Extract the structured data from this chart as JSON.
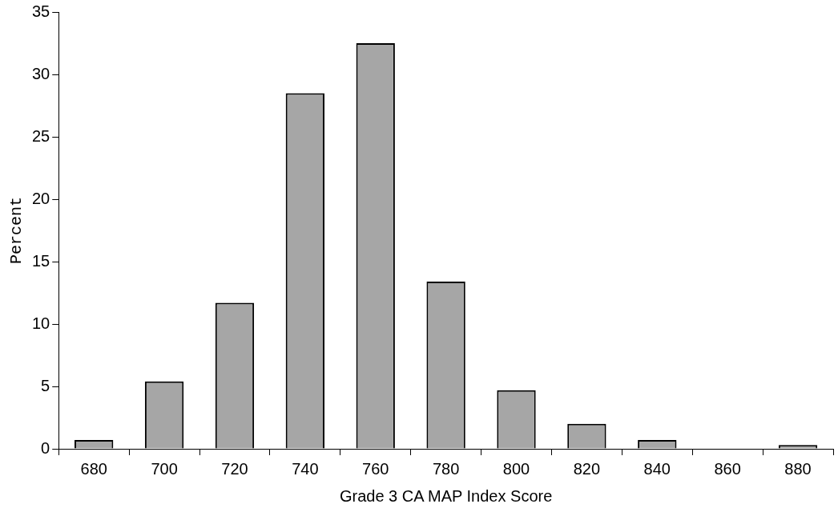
{
  "chart_data": {
    "type": "bar",
    "xlabel": "Grade 3 CA MAP Index Score",
    "ylabel": "Percent",
    "categories": [
      "680",
      "700",
      "720",
      "740",
      "760",
      "780",
      "800",
      "820",
      "840",
      "860",
      "880"
    ],
    "values": [
      0.7,
      5.4,
      11.7,
      28.5,
      32.5,
      13.4,
      4.7,
      2.0,
      0.7,
      0,
      0.3
    ],
    "color": "#a6a6a6",
    "ylim": [
      0,
      35
    ],
    "yticks": [
      0,
      5,
      10,
      15,
      20,
      25,
      30,
      35
    ],
    "grid": false,
    "legend": false
  }
}
